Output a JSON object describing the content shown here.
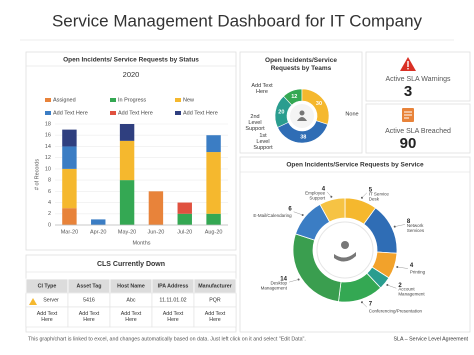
{
  "title": "Service Management Dashboard for IT Company",
  "chart_data": [
    {
      "type": "bar",
      "stacked": true,
      "title": "Open Incidents/ Service Requests by Status",
      "subtitle": "2020",
      "xlabel": "Months",
      "ylabel": "# of Records",
      "categories": [
        "Mar-20",
        "Apr-20",
        "May-20",
        "Jun-20",
        "Jul-20",
        "Aug-20"
      ],
      "series": [
        {
          "name": "Assigned",
          "color": "#e8833a",
          "values": [
            3,
            0,
            0,
            6,
            0,
            0
          ]
        },
        {
          "name": "In Progress",
          "color": "#34a853",
          "values": [
            0,
            0,
            8,
            0,
            2,
            2
          ]
        },
        {
          "name": "New",
          "color": "#f5b82e",
          "values": [
            7,
            0,
            7,
            0,
            0,
            11
          ]
        },
        {
          "name": "Add Text Here",
          "color": "#3b7dc4",
          "values": [
            4,
            1,
            0,
            0,
            0,
            3
          ]
        },
        {
          "name": "Add Text Here",
          "color": "#e0513f",
          "values": [
            0,
            0,
            0,
            0,
            2,
            0
          ]
        },
        {
          "name": "Add Text Here",
          "color": "#2f3f7f",
          "values": [
            3,
            0,
            3,
            0,
            0,
            0
          ]
        }
      ],
      "ylim": [
        0,
        18
      ],
      "yticks": [
        0,
        2,
        4,
        6,
        8,
        10,
        12,
        14,
        16,
        18
      ],
      "grid": true
    },
    {
      "type": "donut",
      "title": "Open Incidents/Service Requests by Teams",
      "categories": [
        "Add Text Here",
        "2nd Level Support",
        "1st Level Support",
        "None"
      ],
      "values": [
        12,
        20,
        38,
        30
      ],
      "colors": [
        "#34a853",
        "#2a9d8f",
        "#2f6db5",
        "#f5b82e"
      ]
    },
    {
      "type": "donut",
      "title": "Open Incidents/Service Requests by Service",
      "categories": [
        "IT Service Desk",
        "Network Services",
        "Printing",
        "Account Management",
        "Conferencing/Presentation",
        "Desktop Management",
        "E-Mail/Calendaring",
        "Employee Support"
      ],
      "values": [
        5,
        8,
        4,
        2,
        7,
        14,
        6,
        4
      ],
      "colors": [
        "#f5b82e",
        "#2f6db5",
        "#f2a22b",
        "#2a9d8f",
        "#34a853",
        "#3a9e4f",
        "#3b7dc4",
        "#f6c344"
      ]
    }
  ],
  "kpis": [
    {
      "label": "Active SLA Warnings",
      "value": "3"
    },
    {
      "label": "Active SLA Breached",
      "value": "90"
    }
  ],
  "table": {
    "title": "CLS Currently Down",
    "columns": [
      "CI Type",
      "Asset Tag",
      "Host Name",
      "IPA Address",
      "Manufacturer"
    ],
    "rows": [
      [
        "Server",
        "5416",
        "Abc",
        "11.11.01.02",
        "PQR"
      ],
      [
        "Add Text Here",
        "Add Text Here",
        "Add Text Here",
        "Add Text Here",
        "Add Text Here"
      ]
    ]
  },
  "footer": {
    "note": "This graph/chart is linked to excel, and changes automatically based on data. Just left click on it and select \"Edit Data\".",
    "legend": "SLA – Service Level Agreement"
  }
}
